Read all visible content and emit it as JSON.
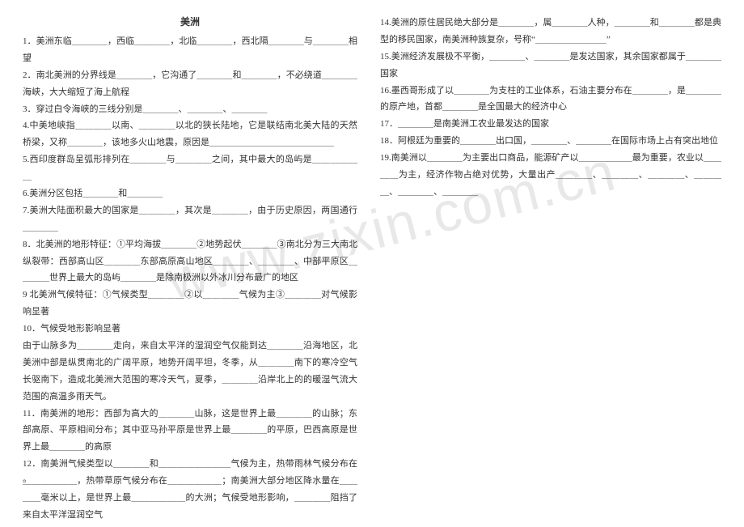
{
  "title": "美洲",
  "watermark": "www.zixin.com.cn",
  "footer_dot": "。",
  "left": [
    "1．美洲东临＿＿＿＿，西临＿＿＿＿，北临＿＿＿＿，西北隔＿＿＿＿与＿＿＿＿相望",
    "2．南北美洲的分界线是＿＿＿＿，它沟通了＿＿＿＿和＿＿＿＿，不必绕道＿＿＿＿海峡，大大缩短了海上航程",
    "3．穿过白令海峡的三线分别是＿＿＿＿、＿＿＿＿、＿＿＿＿",
    "4.中美地峡指＿＿＿＿以南、＿＿＿＿以北的狭长陆地，它是联结南北美大陆的天然桥梁，又称＿＿＿＿，该地多火山地震，原因是＿＿＿＿＿＿＿＿＿＿＿＿＿＿",
    "5.西印度群岛呈弧形排列在＿＿＿＿与＿＿＿＿之间，其中最大的岛屿是＿＿＿＿＿＿",
    "6.美洲分区包括＿＿＿＿和＿＿＿＿",
    "7.美洲大陆面积最大的国家是＿＿＿＿，其次是＿＿＿＿，由于历史原因，两国通行＿＿＿＿",
    "8．北美洲的地形特征：①平均海拔＿＿＿＿②地势起伏＿＿＿＿③南北分为三大南北纵裂带：西部高山区＿＿＿＿东部高原高山地区＿＿＿＿、＿＿＿＿、中部平原区＿＿＿＿世界上最大的岛屿＿＿＿＿是除南极洲以外冰川分布最广的地区",
    "9 北美洲气候特征：①气候类型＿＿＿＿②以＿＿＿＿气候为主③＿＿＿＿对气候影响显著",
    "10．气候受地形影响显著",
    "由于山脉多为＿＿＿＿走向，来自太平洋的湿润空气仅能到达＿＿＿＿沿海地区，北美洲中部是纵贯南北的广阔平原，地势开阔平坦，冬季，从＿＿＿＿南下的寒冷空气长驱南下，造成北美洲大范围的寒冷天气，夏季，＿＿＿＿沿岸北上的的暖湿气流大范围的高温多雨天气。",
    "11．南美洲的地形：西部为高大的＿＿＿＿山脉，这是世界上最＿＿＿＿的山脉；东部高原、平原相间分布；其中亚马孙平原是世界上最＿＿＿＿的平原，巴西高原是世界上最＿＿＿＿的高原",
    "12．南美洲气候类型以＿＿＿＿和＿＿＿＿＿＿＿＿气候为主，热带雨林气候分布在＿＿＿＿＿＿，热带草原气候分布在＿＿＿＿＿＿；南美洲大部分地区降水量在＿＿＿＿毫米以上，是世界上最＿＿＿＿＿＿的大洲；气候受地形影响，＿＿＿＿阻挡了来自太平洋湿润空气"
  ],
  "right": [
    "14.美洲的原住居民绝大部分是＿＿＿＿，属＿＿＿＿人种，＿＿＿＿和＿＿＿＿都是典型的移民国家，南美洲种族复杂，号称“＿＿＿＿＿＿＿＿”",
    "15.美洲经济发展极不平衡，＿＿＿＿、＿＿＿＿是发达国家，其余国家都属于＿＿＿＿国家",
    "16.墨西哥形成了以＿＿＿＿为支柱的工业体系，石油主要分布在＿＿＿＿，是＿＿＿＿的原产地，首都＿＿＿＿是全国最大的经济中心",
    "17．＿＿＿＿是南美洲工农业最发达的国家",
    "18．阿根廷为重要的＿＿＿＿出口国，＿＿＿＿、＿＿＿＿在国际市场上占有突出地位",
    "19.南美洲以＿＿＿＿为主要出口商品，能源矿产以＿＿＿＿＿＿最为重要，农业以＿＿＿＿为主，经济作物占绝对优势，大量出产＿＿＿＿、＿＿＿＿、＿＿＿＿、＿＿＿＿、＿＿＿＿、＿＿＿＿"
  ]
}
